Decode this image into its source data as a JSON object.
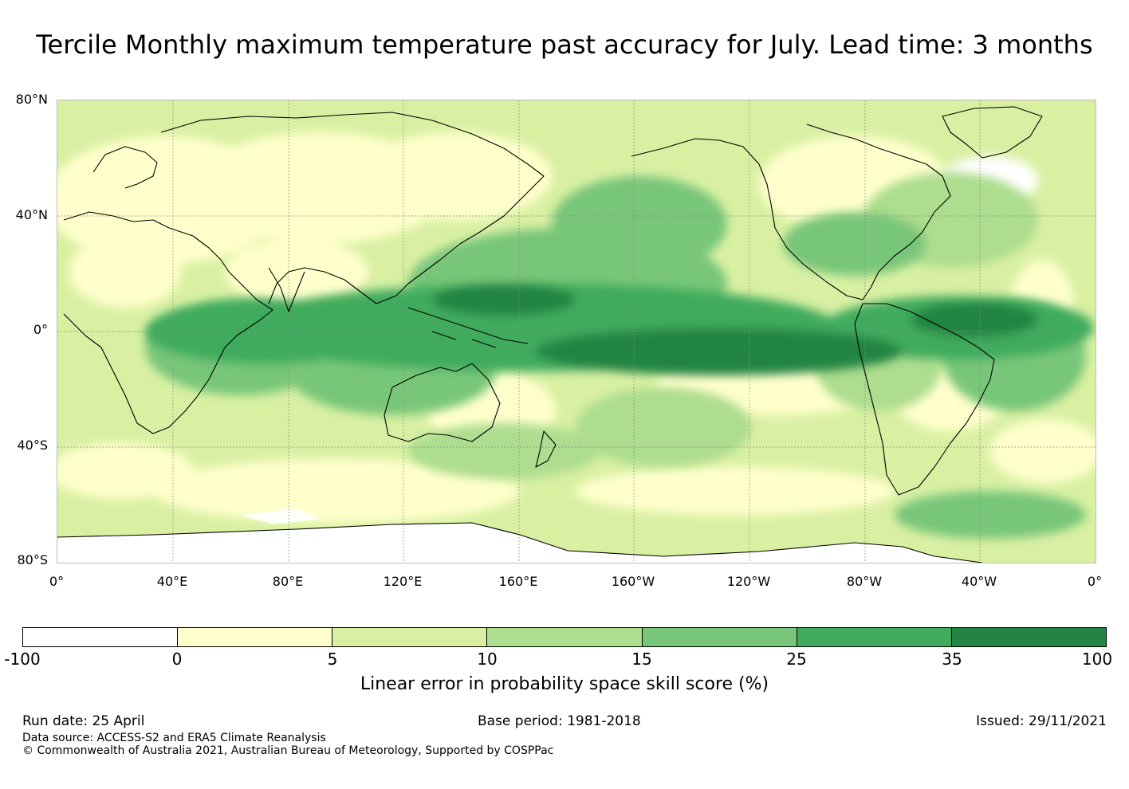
{
  "title": "Tercile Monthly maximum temperature past accuracy for July. Lead time: 3 months",
  "map": {
    "lat_labels": [
      "80°N",
      "40°N",
      "0°",
      "40°S",
      "80°S"
    ],
    "lon_labels": [
      "0°",
      "40°E",
      "80°E",
      "120°E",
      "160°E",
      "160°W",
      "120°W",
      "80°W",
      "40°W",
      "0°"
    ]
  },
  "colorbar": {
    "ticks": [
      "-100",
      "0",
      "5",
      "10",
      "15",
      "25",
      "35",
      "100"
    ],
    "colors": [
      "#ffffff",
      "#ffffcc",
      "#d9f0a3",
      "#addd8e",
      "#78c679",
      "#41ab5d",
      "#238443"
    ],
    "label": "Linear error in probability space skill score (%)"
  },
  "footer": {
    "run_date": "Run date: 25 April",
    "base_period": "Base period: 1981-2018",
    "issued": "Issued: 29/11/2021",
    "data_source": "Data source: ACCESS-S2 and ERA5 Climate Reanalysis",
    "copyright": "© Commonwealth of Australia 2021, Australian Bureau of Meteorology, Supported by COSPPac"
  }
}
